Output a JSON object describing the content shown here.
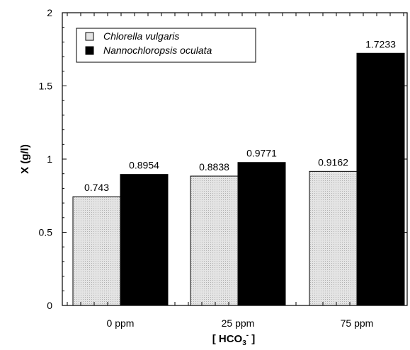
{
  "chart_data": {
    "type": "bar",
    "title": "",
    "xlabel_main": "[ HCO",
    "xlabel_sub": "3",
    "xlabel_sup": "-",
    "xlabel_end": " ]",
    "ylabel": "X (g/l)",
    "categories": [
      "0 ppm",
      "25 ppm",
      "75 ppm"
    ],
    "series": [
      {
        "name": "Chlorella vulgaris",
        "values": [
          0.743,
          0.8838,
          0.9162
        ],
        "labels": [
          "0.743",
          "0.8838",
          "0.9162"
        ],
        "color": "#e6e6e6"
      },
      {
        "name": "Nannochloropsis oculata",
        "values": [
          0.8954,
          0.9771,
          1.7233
        ],
        "labels": [
          "0.8954",
          "0.9771",
          "1.7233"
        ],
        "color": "#000000"
      }
    ],
    "ylim": [
      0,
      2
    ],
    "yticks": [
      0,
      0.5,
      1,
      1.5,
      2
    ],
    "ytick_labels": [
      "0",
      "0.5",
      "1",
      "1.5",
      "2"
    ],
    "grid": false,
    "legend_position": "top-left"
  }
}
